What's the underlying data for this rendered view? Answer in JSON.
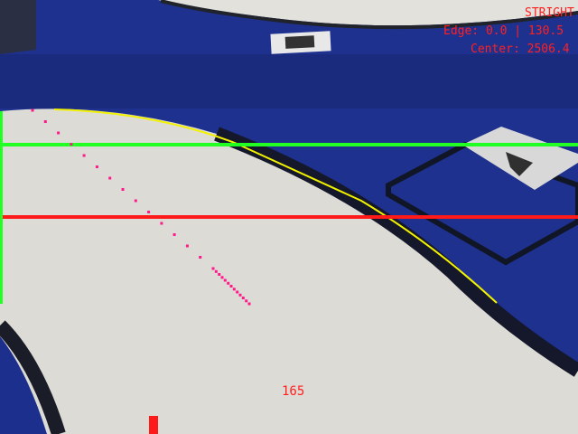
{
  "hud": {
    "mode": "STRIGHT",
    "edge_text": "Edge: 0.0 | 130.5",
    "center_text": "Center: 2506.4",
    "bottom_value": "165"
  },
  "colors": {
    "hud_red": "#ff2020",
    "guide_green": "#22ff22",
    "guide_red": "#ff1a1a",
    "edge_yellow": "#f2f200",
    "path_magenta": "#ff1a8c",
    "track_blue": "#1d2f8c",
    "board_white": "#dedcd6"
  }
}
